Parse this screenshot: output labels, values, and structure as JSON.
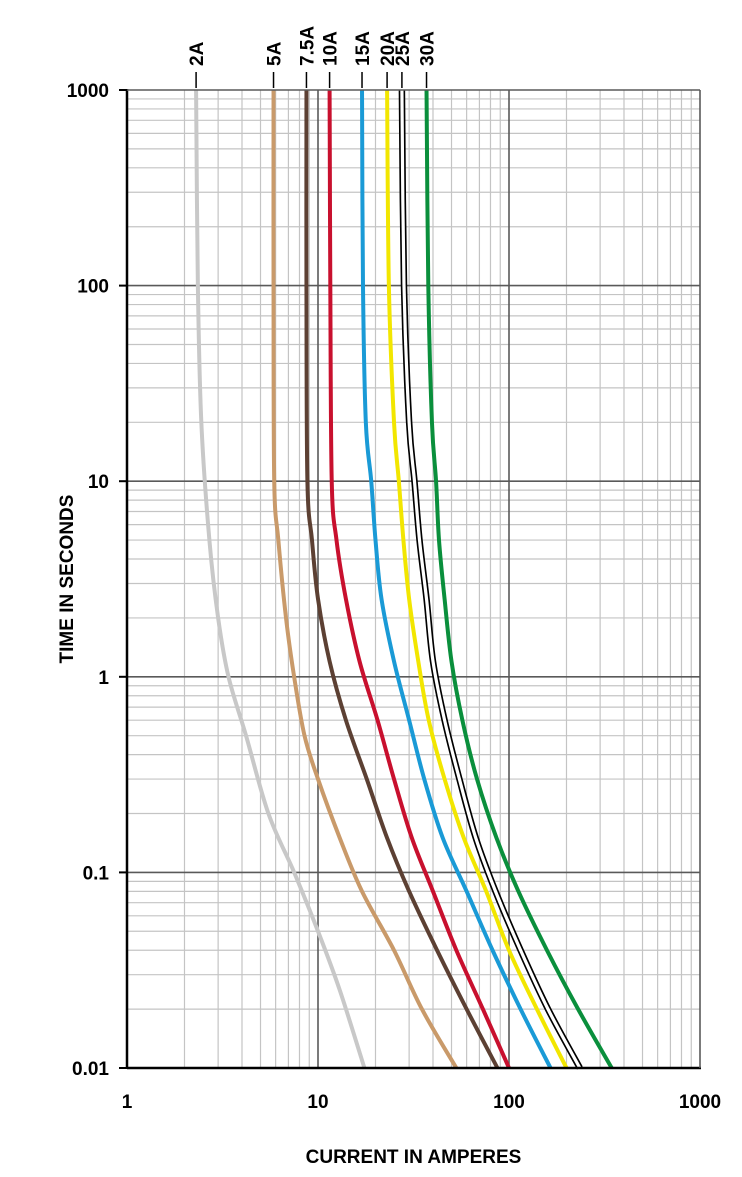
{
  "chart_data": {
    "type": "line",
    "xlabel": "CURRENT IN AMPERES",
    "ylabel": "TIME IN SECONDS",
    "xscale": "log",
    "yscale": "log",
    "xlim": [
      1,
      1000
    ],
    "ylim": [
      0.01,
      1000
    ],
    "grid": true,
    "x_tick_labels": [
      "1",
      "10",
      "100",
      "1000"
    ],
    "y_tick_labels": [
      "1000",
      "100",
      "10",
      "1",
      "0.1",
      "0.01"
    ],
    "series": [
      {
        "name": "2A",
        "color": "#c8c8c8",
        "outline": false,
        "points": [
          [
            2.3,
            1000
          ],
          [
            2.35,
            100
          ],
          [
            2.45,
            20
          ],
          [
            2.7,
            5
          ],
          [
            3.0,
            2
          ],
          [
            3.4,
            1
          ],
          [
            4.2,
            0.5
          ],
          [
            5.5,
            0.2
          ],
          [
            7.5,
            0.1
          ],
          [
            10,
            0.05
          ],
          [
            13,
            0.025
          ],
          [
            17.5,
            0.01
          ]
        ]
      },
      {
        "name": "5A",
        "color": "#c99a6a",
        "outline": false,
        "points": [
          [
            5.85,
            1000
          ],
          [
            5.85,
            100
          ],
          [
            5.9,
            10
          ],
          [
            6.2,
            5
          ],
          [
            6.8,
            2
          ],
          [
            7.5,
            1
          ],
          [
            8.5,
            0.5
          ],
          [
            10,
            0.3
          ],
          [
            13,
            0.15
          ],
          [
            17,
            0.08
          ],
          [
            25,
            0.04
          ],
          [
            35,
            0.02
          ],
          [
            53,
            0.01
          ]
        ]
      },
      {
        "name": "7.5A",
        "color": "#5c4033",
        "outline": false,
        "points": [
          [
            8.7,
            1000
          ],
          [
            8.7,
            100
          ],
          [
            8.8,
            10
          ],
          [
            9.3,
            5
          ],
          [
            10,
            2.5
          ],
          [
            11.5,
            1.2
          ],
          [
            14,
            0.6
          ],
          [
            18,
            0.3
          ],
          [
            23,
            0.15
          ],
          [
            30,
            0.08
          ],
          [
            42,
            0.04
          ],
          [
            60,
            0.02
          ],
          [
            87,
            0.01
          ]
        ]
      },
      {
        "name": "10A",
        "color": "#c8102e",
        "outline": false,
        "points": [
          [
            11.5,
            1000
          ],
          [
            11.6,
            100
          ],
          [
            11.8,
            10
          ],
          [
            12.5,
            5
          ],
          [
            14,
            2.5
          ],
          [
            16.5,
            1.2
          ],
          [
            20.5,
            0.6
          ],
          [
            25,
            0.3
          ],
          [
            31,
            0.15
          ],
          [
            40,
            0.08
          ],
          [
            53,
            0.04
          ],
          [
            73,
            0.02
          ],
          [
            100,
            0.01
          ]
        ]
      },
      {
        "name": "15A",
        "color": "#1a9ad6",
        "outline": false,
        "points": [
          [
            17,
            1000
          ],
          [
            17.2,
            100
          ],
          [
            17.8,
            20
          ],
          [
            19,
            10
          ],
          [
            20,
            5
          ],
          [
            21.5,
            2.5
          ],
          [
            25,
            1.2
          ],
          [
            30,
            0.6
          ],
          [
            36,
            0.3
          ],
          [
            45,
            0.15
          ],
          [
            60,
            0.08
          ],
          [
            82,
            0.04
          ],
          [
            115,
            0.02
          ],
          [
            165,
            0.01
          ]
        ]
      },
      {
        "name": "20A",
        "color": "#f2e600",
        "outline": false,
        "points": [
          [
            23,
            1000
          ],
          [
            23.5,
            100
          ],
          [
            25,
            20
          ],
          [
            26.5,
            10
          ],
          [
            28,
            5
          ],
          [
            30,
            2.5
          ],
          [
            33.5,
            1.2
          ],
          [
            38,
            0.6
          ],
          [
            46,
            0.3
          ],
          [
            58,
            0.15
          ],
          [
            76,
            0.08
          ],
          [
            100,
            0.04
          ],
          [
            140,
            0.02
          ],
          [
            200,
            0.01
          ]
        ]
      },
      {
        "name": "25A",
        "color": "#ffffff",
        "outline": true,
        "points": [
          [
            27.5,
            1000
          ],
          [
            28.2,
            100
          ],
          [
            30,
            20
          ],
          [
            32,
            10
          ],
          [
            34,
            5
          ],
          [
            37,
            2.5
          ],
          [
            40,
            1.2
          ],
          [
            46,
            0.6
          ],
          [
            55,
            0.3
          ],
          [
            67,
            0.15
          ],
          [
            85,
            0.08
          ],
          [
            115,
            0.04
          ],
          [
            160,
            0.02
          ],
          [
            235,
            0.01
          ]
        ]
      },
      {
        "name": "30A",
        "color": "#0a8f3c",
        "outline": false,
        "points": [
          [
            37,
            1000
          ],
          [
            37.8,
            100
          ],
          [
            39.5,
            20
          ],
          [
            41.5,
            10
          ],
          [
            43,
            5
          ],
          [
            46,
            2.5
          ],
          [
            50,
            1.2
          ],
          [
            57,
            0.6
          ],
          [
            68,
            0.3
          ],
          [
            86,
            0.15
          ],
          [
            112,
            0.08
          ],
          [
            158,
            0.04
          ],
          [
            230,
            0.02
          ],
          [
            345,
            0.01
          ]
        ]
      }
    ]
  }
}
